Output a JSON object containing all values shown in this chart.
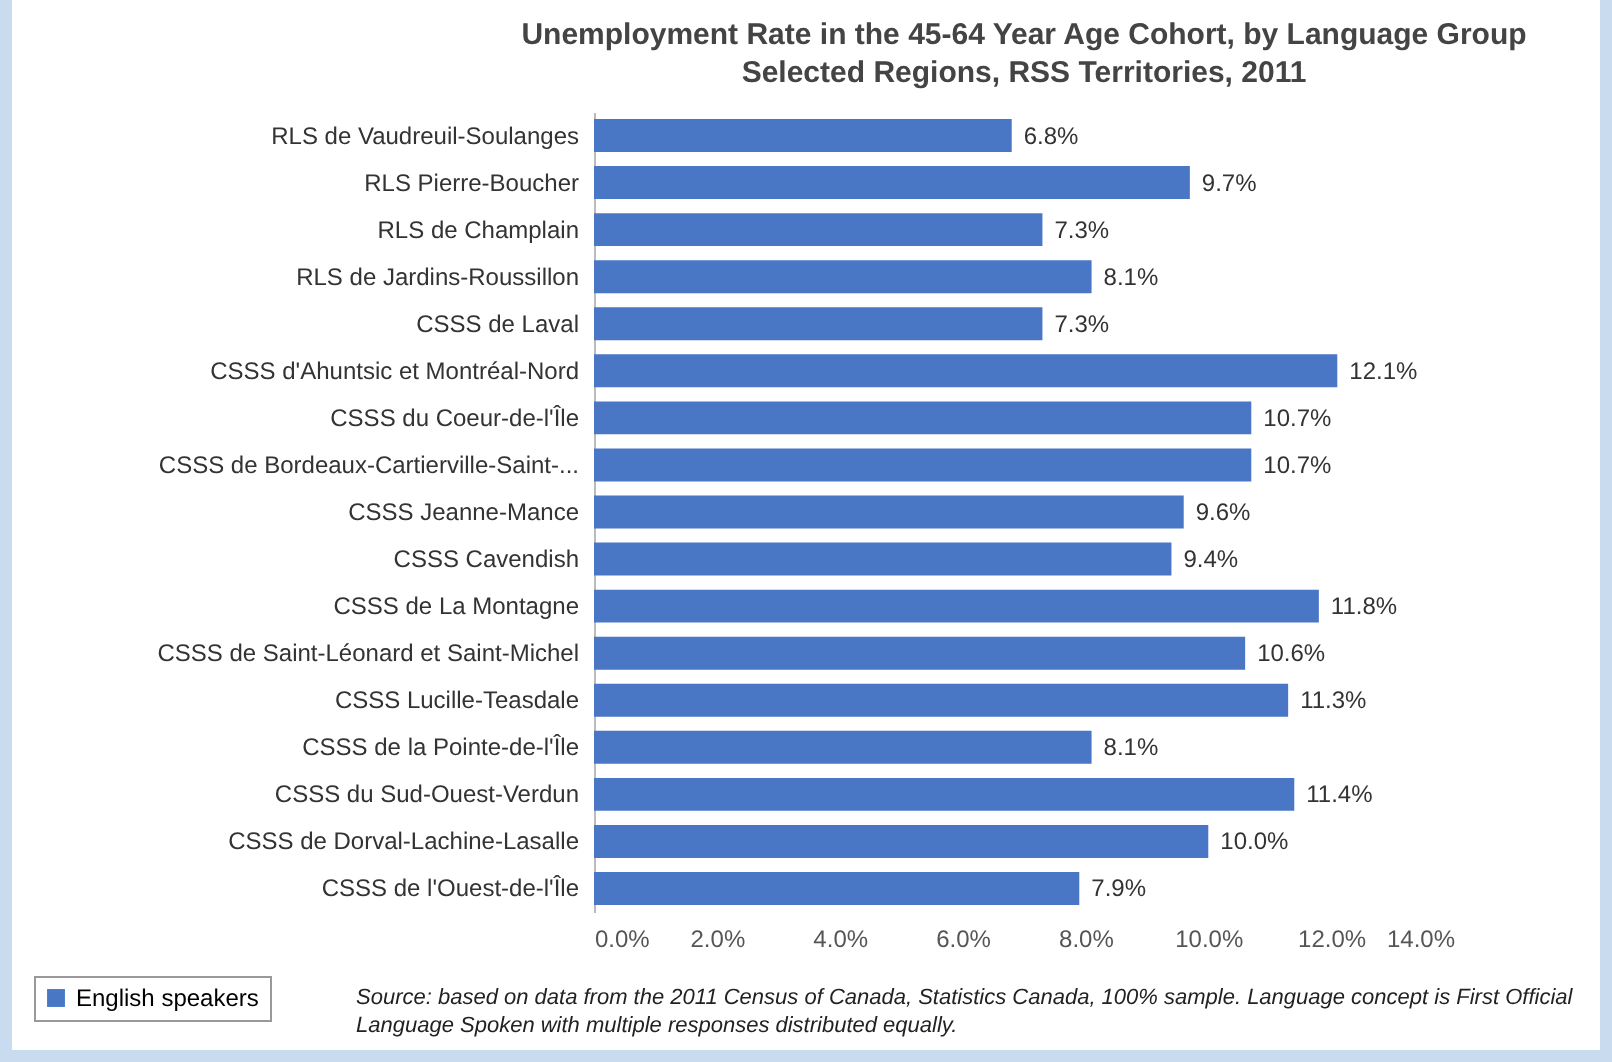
{
  "chart_data": {
    "type": "bar",
    "orientation": "horizontal",
    "title": "Unemployment Rate in the 45-64 Year Age Cohort, by Language Group",
    "subtitle": "Selected Regions, RSS Territories, 2011",
    "categories": [
      "RLS de Vaudreuil-Soulanges",
      "RLS Pierre-Boucher",
      "RLS de Champlain",
      "RLS de Jardins-Roussillon",
      "CSSS de Laval",
      "CSSS d'Ahuntsic et Montréal-Nord",
      "CSSS du Coeur-de-l'Île",
      "CSSS de Bordeaux-Cartierville-Saint-...",
      "CSSS Jeanne-Mance",
      "CSSS Cavendish",
      "CSSS de La Montagne",
      "CSSS de Saint-Léonard et Saint-Michel",
      "CSSS Lucille-Teasdale",
      "CSSS de la Pointe-de-l'Île",
      "CSSS du Sud-Ouest-Verdun",
      "CSSS de Dorval-Lachine-Lasalle",
      "CSSS de l'Ouest-de-l'Île"
    ],
    "series": [
      {
        "name": "English speakers",
        "color": "#4a76c6",
        "values": [
          6.8,
          9.7,
          7.3,
          8.1,
          7.3,
          12.1,
          10.7,
          10.7,
          9.6,
          9.4,
          11.8,
          10.6,
          11.3,
          8.1,
          11.4,
          10.0,
          7.9
        ],
        "value_labels": [
          "6.8%",
          "9.7%",
          "7.3%",
          "8.1%",
          "7.3%",
          "12.1%",
          "10.7%",
          "10.7%",
          "9.6%",
          "9.4%",
          "11.8%",
          "10.6%",
          "11.3%",
          "8.1%",
          "11.4%",
          "10.0%",
          "7.9%"
        ]
      }
    ],
    "xlim": [
      0,
      14
    ],
    "xticks": [
      {
        "value": 0,
        "label": "0.0%"
      },
      {
        "value": 2,
        "label": "2.0%"
      },
      {
        "value": 4,
        "label": "4.0%"
      },
      {
        "value": 6,
        "label": "6.0%"
      },
      {
        "value": 8,
        "label": "8.0%"
      },
      {
        "value": 10,
        "label": "10.0%"
      },
      {
        "value": 12,
        "label": "12.0%"
      },
      {
        "value": 14,
        "label": "14.0%"
      }
    ],
    "grid": false,
    "legend": "bottom left",
    "annotations": [
      "Source: based on data from the 2011 Census of Canada, Statistics Canada, 100% sample. Language concept is First Official Language Spoken with multiple responses distributed equally."
    ]
  }
}
